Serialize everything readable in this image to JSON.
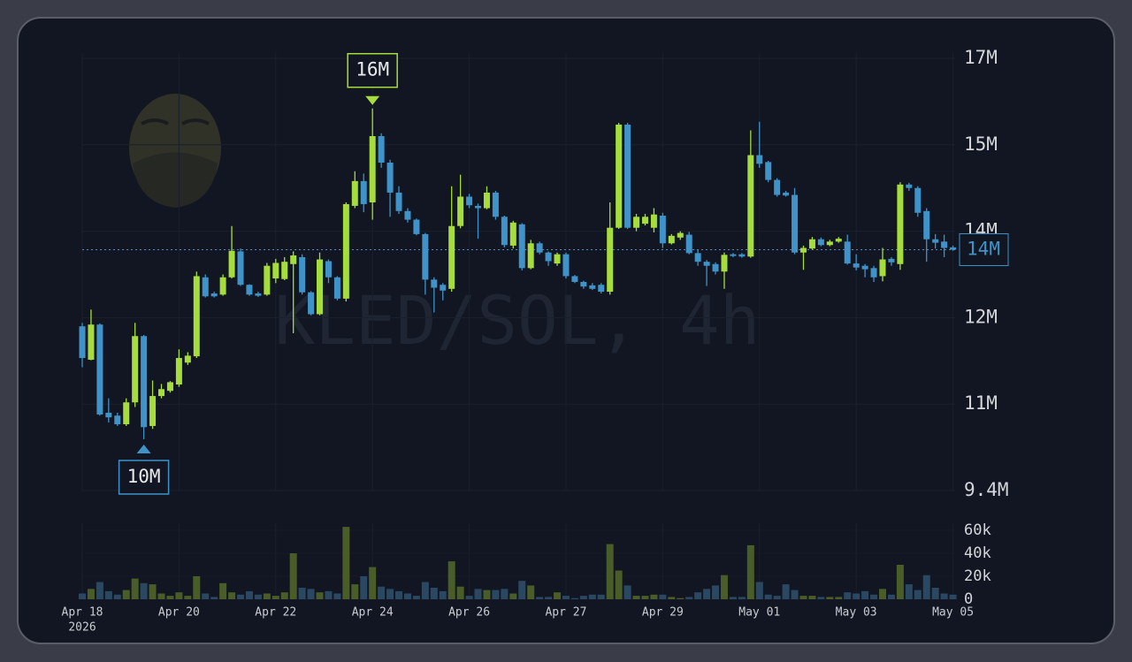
{
  "chart_data": {
    "type": "candlestick",
    "watermark": "KLED/SOL, 4h",
    "year_label": "2026",
    "categories": [
      "Apr 18",
      null,
      null,
      null,
      null,
      null,
      null,
      null,
      null,
      null,
      null,
      "Apr 20",
      null,
      null,
      null,
      null,
      null,
      null,
      null,
      null,
      null,
      null,
      "Apr 22",
      null,
      null,
      null,
      null,
      null,
      null,
      null,
      null,
      null,
      null,
      "Apr 24",
      null,
      null,
      null,
      null,
      null,
      null,
      null,
      null,
      null,
      null,
      "Apr 26",
      null,
      null,
      null,
      null,
      null,
      null,
      null,
      null,
      null,
      null,
      "Apr 27",
      null,
      null,
      null,
      null,
      null,
      null,
      null,
      null,
      null,
      null,
      "Apr 29",
      null,
      null,
      null,
      null,
      null,
      null,
      null,
      null,
      null,
      null,
      "May 01",
      null,
      null,
      null,
      null,
      null,
      null,
      null,
      null,
      null,
      null,
      "May 03",
      null,
      null,
      null,
      null,
      null,
      null,
      null,
      null,
      null,
      null,
      "May 05"
    ],
    "open": [
      12.25,
      11.67,
      12.28,
      10.75,
      10.7,
      10.55,
      10.93,
      12.08,
      10.52,
      11.04,
      11.13,
      11.24,
      11.62,
      11.73,
      13.1,
      12.82,
      12.8,
      13.1,
      13.55,
      12.97,
      12.82,
      12.8,
      13.08,
      13.07,
      13.33,
      13.45,
      12.84,
      12.46,
      13.38,
      13.1,
      12.73,
      14.34,
      14.77,
      14.4,
      15.55,
      15.09,
      14.57,
      14.25,
      14.1,
      13.85,
      13.06,
      12.97,
      12.9,
      13.99,
      14.5,
      14.34,
      14.3,
      14.57,
      14.15,
      13.65,
      14.02,
      13.26,
      13.69,
      13.53,
      13.34,
      13.5,
      13.12,
      13.02,
      12.96,
      12.97,
      12.85,
      13.96,
      15.75,
      13.96,
      14.03,
      13.96,
      14.17,
      13.69,
      13.79,
      13.84,
      13.52,
      13.37,
      13.33,
      13.2,
      13.5,
      13.5,
      13.46,
      15.22,
      15.1,
      14.79,
      14.57,
      14.53,
      13.53,
      13.6,
      13.76,
      13.66,
      13.72,
      13.72,
      13.34,
      13.3,
      13.26,
      13.12,
      13.42,
      13.33,
      14.71,
      14.65,
      14.25,
      13.76,
      13.72,
      13.62
    ],
    "high": [
      12.31,
      12.54,
      12.3,
      11.0,
      10.75,
      11.0,
      12.31,
      12.1,
      11.31,
      11.25,
      11.3,
      11.85,
      11.8,
      13.2,
      13.15,
      12.85,
      13.15,
      13.99,
      13.6,
      12.98,
      12.85,
      13.35,
      13.42,
      13.45,
      13.55,
      13.5,
      12.86,
      13.53,
      13.41,
      13.12,
      14.4,
      14.94,
      14.9,
      16.03,
      15.6,
      15.14,
      14.68,
      14.3,
      14.12,
      13.87,
      13.1,
      13.0,
      14.68,
      14.88,
      14.55,
      14.38,
      14.68,
      14.6,
      14.17,
      14.08,
      14.04,
      13.75,
      13.72,
      13.55,
      13.53,
      13.53,
      13.14,
      13.04,
      13.0,
      13.0,
      14.4,
      15.78,
      15.78,
      14.2,
      14.2,
      14.3,
      14.22,
      13.85,
      13.9,
      13.89,
      13.58,
      13.4,
      13.36,
      13.53,
      13.52,
      13.52,
      15.65,
      15.8,
      15.12,
      14.82,
      14.6,
      14.65,
      13.65,
      13.8,
      13.79,
      13.75,
      13.8,
      13.84,
      13.5,
      13.33,
      13.3,
      13.61,
      13.45,
      14.75,
      14.74,
      14.68,
      14.3,
      13.85,
      13.84,
      13.65
    ],
    "low": [
      11.54,
      11.66,
      10.7,
      10.58,
      10.52,
      10.52,
      10.85,
      10.29,
      10.47,
      11.0,
      11.1,
      11.2,
      11.58,
      11.7,
      12.75,
      12.75,
      12.78,
      13.08,
      12.95,
      12.78,
      12.76,
      12.78,
      13.0,
      13.05,
      12.13,
      12.8,
      12.44,
      12.44,
      13.0,
      12.7,
      12.68,
      14.3,
      14.23,
      14.1,
      15.0,
      14.15,
      14.2,
      14.05,
      13.83,
      12.8,
      12.49,
      12.7,
      12.85,
      13.95,
      14.3,
      13.77,
      14.28,
      14.1,
      13.62,
      13.6,
      13.22,
      13.24,
      13.5,
      13.3,
      13.3,
      13.08,
      13.0,
      12.9,
      12.88,
      12.82,
      12.8,
      13.94,
      13.94,
      13.9,
      14.0,
      13.88,
      13.61,
      13.67,
      13.75,
      13.5,
      13.3,
      12.95,
      13.15,
      12.9,
      13.45,
      13.44,
      13.44,
      15.0,
      14.75,
      14.5,
      14.5,
      13.5,
      13.23,
      13.58,
      13.64,
      13.64,
      13.7,
      13.32,
      13.22,
      13.1,
      13.02,
      13.03,
      13.3,
      13.23,
      14.6,
      14.15,
      13.37,
      13.6,
      13.45,
      13.56
    ],
    "close": [
      11.7,
      12.28,
      10.72,
      10.67,
      10.55,
      10.93,
      12.08,
      10.5,
      11.04,
      11.16,
      11.28,
      11.7,
      11.74,
      13.12,
      12.77,
      12.77,
      13.1,
      13.56,
      12.97,
      12.8,
      12.78,
      13.3,
      13.35,
      13.37,
      13.48,
      12.84,
      12.46,
      13.41,
      13.1,
      12.73,
      14.37,
      14.77,
      14.37,
      15.55,
      15.09,
      14.57,
      14.25,
      14.1,
      13.85,
      13.06,
      12.92,
      12.87,
      13.99,
      14.5,
      14.35,
      14.3,
      14.57,
      14.15,
      13.66,
      14.05,
      13.26,
      13.69,
      13.53,
      13.38,
      13.5,
      13.12,
      13.02,
      12.94,
      12.9,
      12.85,
      13.96,
      15.75,
      13.96,
      14.15,
      14.15,
      14.19,
      13.69,
      13.82,
      13.87,
      13.52,
      13.37,
      13.3,
      13.2,
      13.49,
      13.47,
      13.46,
      15.22,
      15.07,
      14.79,
      14.53,
      14.52,
      13.53,
      13.61,
      13.76,
      13.66,
      13.72,
      13.77,
      13.34,
      13.27,
      13.24,
      13.1,
      13.41,
      13.36,
      14.71,
      14.65,
      14.22,
      13.76,
      13.7,
      13.61,
      13.58
    ],
    "volume": [
      5,
      9,
      15,
      7,
      4,
      8,
      18,
      14,
      13,
      5,
      3,
      6,
      3,
      20,
      5,
      2,
      14,
      6,
      4,
      7,
      4,
      5,
      3,
      6,
      40,
      10,
      9,
      6,
      7,
      5,
      63,
      13,
      20,
      28,
      11,
      9,
      7,
      5,
      3,
      15,
      10,
      7,
      33,
      11,
      3,
      9,
      8,
      8,
      9,
      5,
      16,
      12,
      2,
      2,
      6,
      3,
      1,
      3,
      4,
      4,
      48,
      25,
      12,
      3,
      3,
      4,
      4,
      2,
      1,
      2,
      6,
      9,
      12,
      21,
      2,
      2,
      47,
      15,
      4,
      3,
      13,
      8,
      3,
      3,
      2,
      2,
      2,
      6,
      5,
      7,
      4,
      9,
      4,
      30,
      13,
      8,
      21,
      10,
      5,
      4
    ],
    "up_color": "#a6dd3c",
    "down_color": "#3f93c9",
    "volume_up_color": "#4a5c27",
    "volume_down_color": "#2b4863",
    "ylim": [
      9.4,
      16.9
    ],
    "yticks": [
      {
        "value": 9.4,
        "label": "9.4M"
      },
      {
        "value": 10.9,
        "label": "11M"
      },
      {
        "value": 12.4,
        "label": "12M"
      },
      {
        "value": 13.9,
        "label": "14M"
      },
      {
        "value": 15.4,
        "label": "15M"
      },
      {
        "value": 16.9,
        "label": "17M"
      }
    ],
    "volume_ylim": [
      0,
      60
    ],
    "volume_yticks": [
      0,
      {
        "value": 20,
        "label": "20k"
      },
      {
        "value": 40,
        "label": "40k"
      },
      {
        "value": 60,
        "label": "60k"
      }
    ],
    "grid": true,
    "annotations": [
      {
        "label": "16M",
        "index": 33,
        "value": 16.03,
        "position": "above",
        "color": "#a6dd3c"
      },
      {
        "label": "10M",
        "index": 7,
        "value": 10.29,
        "position": "below",
        "color": "#3f93c9"
      }
    ],
    "last_price": {
      "value": 13.58,
      "label": "14M",
      "color": "#3f93c9"
    }
  }
}
